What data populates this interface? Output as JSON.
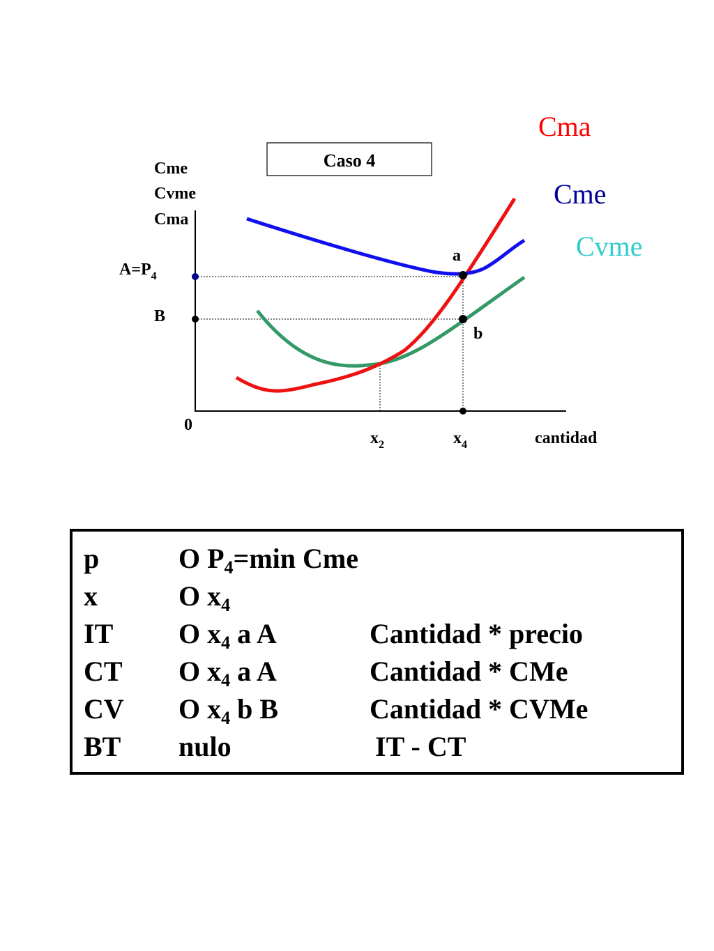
{
  "diagram": {
    "case_label": "Caso 4",
    "y_axis_label": [
      "Cme",
      "Cvme",
      "Cma"
    ],
    "x_axis_label": "cantidad",
    "origin_label": "0",
    "price_label_main": "A=P",
    "price_label_sub": "4",
    "level_b_label": "B",
    "x2_main": "x",
    "x2_sub": "2",
    "x4_main": "x",
    "x4_sub": "4",
    "point_a_label": "a",
    "point_b_label": "b",
    "legend": {
      "cma": {
        "label": "Cma",
        "color": "#ff0000"
      },
      "cme": {
        "label": "Cme",
        "color": "#000099"
      },
      "cvme": {
        "label": "Cvme",
        "color": "#33cccc"
      }
    },
    "curve_colors": {
      "cma": "#ee1111",
      "cme": "#1010ee",
      "cvme": "#339966"
    }
  },
  "table": {
    "rows": [
      {
        "var": "p",
        "b_pre": "O P",
        "b_sub": "4",
        "b_post": "=min Cme",
        "formula": ""
      },
      {
        "var": "x",
        "b_pre": "O x",
        "b_sub": "4",
        "b_post": "",
        "formula": ""
      },
      {
        "var": "IT",
        "b_pre": "O x",
        "b_sub": "4",
        "b_post": " a A",
        "formula": "Cantidad * precio"
      },
      {
        "var": "CT",
        "b_pre": "O x",
        "b_sub": "4",
        "b_post": " a A",
        "formula": "Cantidad * CMe"
      },
      {
        "var": "CV",
        "b_pre": "O x",
        "b_sub": "4",
        "b_post": " b B",
        "formula": "Cantidad * CVMe"
      },
      {
        "var": "BT",
        "b_pre": "nulo",
        "b_sub": "",
        "b_post": "",
        "formula": "IT - CT"
      }
    ]
  }
}
